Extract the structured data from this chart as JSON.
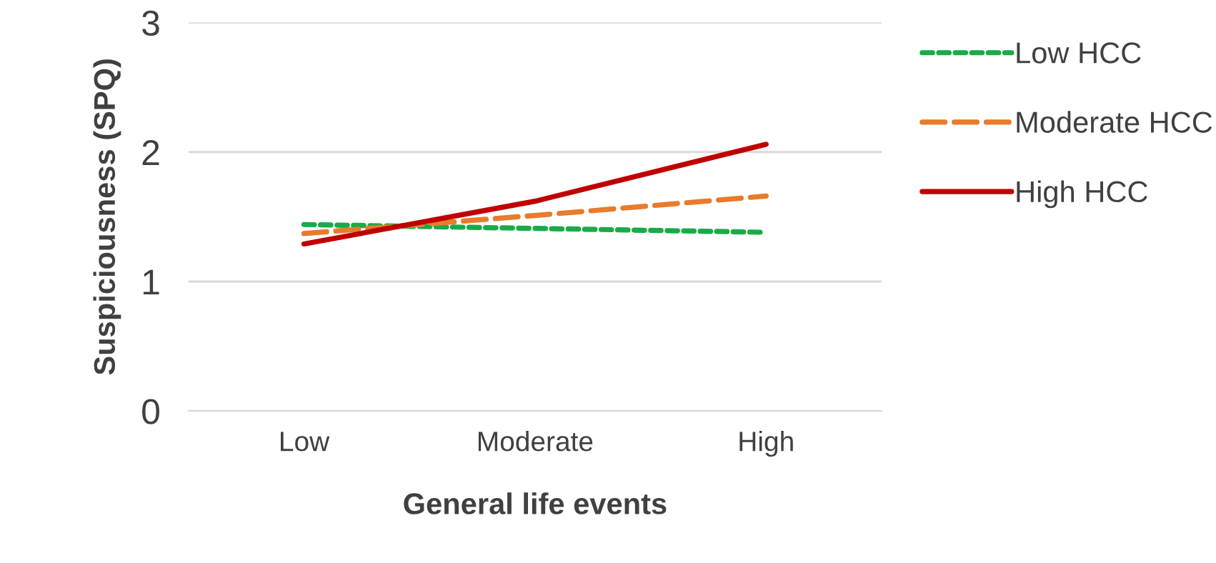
{
  "chart_data": {
    "type": "line",
    "xlabel": "General life events",
    "ylabel": "Suspiciousness (SPQ)",
    "categories": [
      "Low",
      "Moderate",
      "High"
    ],
    "series": [
      {
        "name": "Low HCC",
        "color": "#1aab48",
        "line_style": "dotted",
        "values": [
          1.44,
          1.41,
          1.38
        ]
      },
      {
        "name": "Moderate HCC",
        "color": "#e87b2c",
        "line_style": "dashed",
        "values": [
          1.37,
          1.51,
          1.66
        ]
      },
      {
        "name": "High HCC",
        "color": "#c00000",
        "line_style": "solid",
        "values": [
          1.29,
          1.62,
          2.06
        ]
      }
    ],
    "ylim": [
      0,
      3
    ],
    "yticks": [
      0,
      1,
      2,
      3
    ],
    "grid": "y",
    "legend": "right",
    "marker": "none"
  }
}
